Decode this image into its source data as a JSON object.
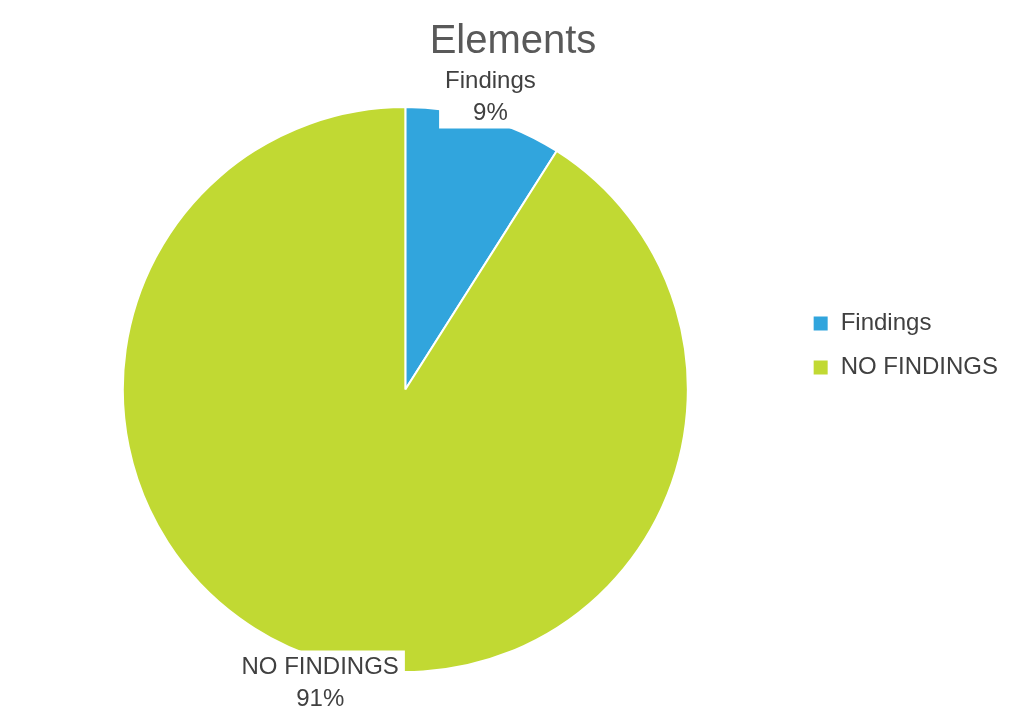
{
  "chart_data": {
    "type": "pie",
    "title": "Elements",
    "categories": [
      "Findings",
      "NO FINDINGS"
    ],
    "values": [
      9,
      91
    ],
    "colors": [
      "#31a5dd",
      "#c1d933"
    ],
    "value_labels": [
      "9%",
      "91%"
    ],
    "legend": "right"
  }
}
